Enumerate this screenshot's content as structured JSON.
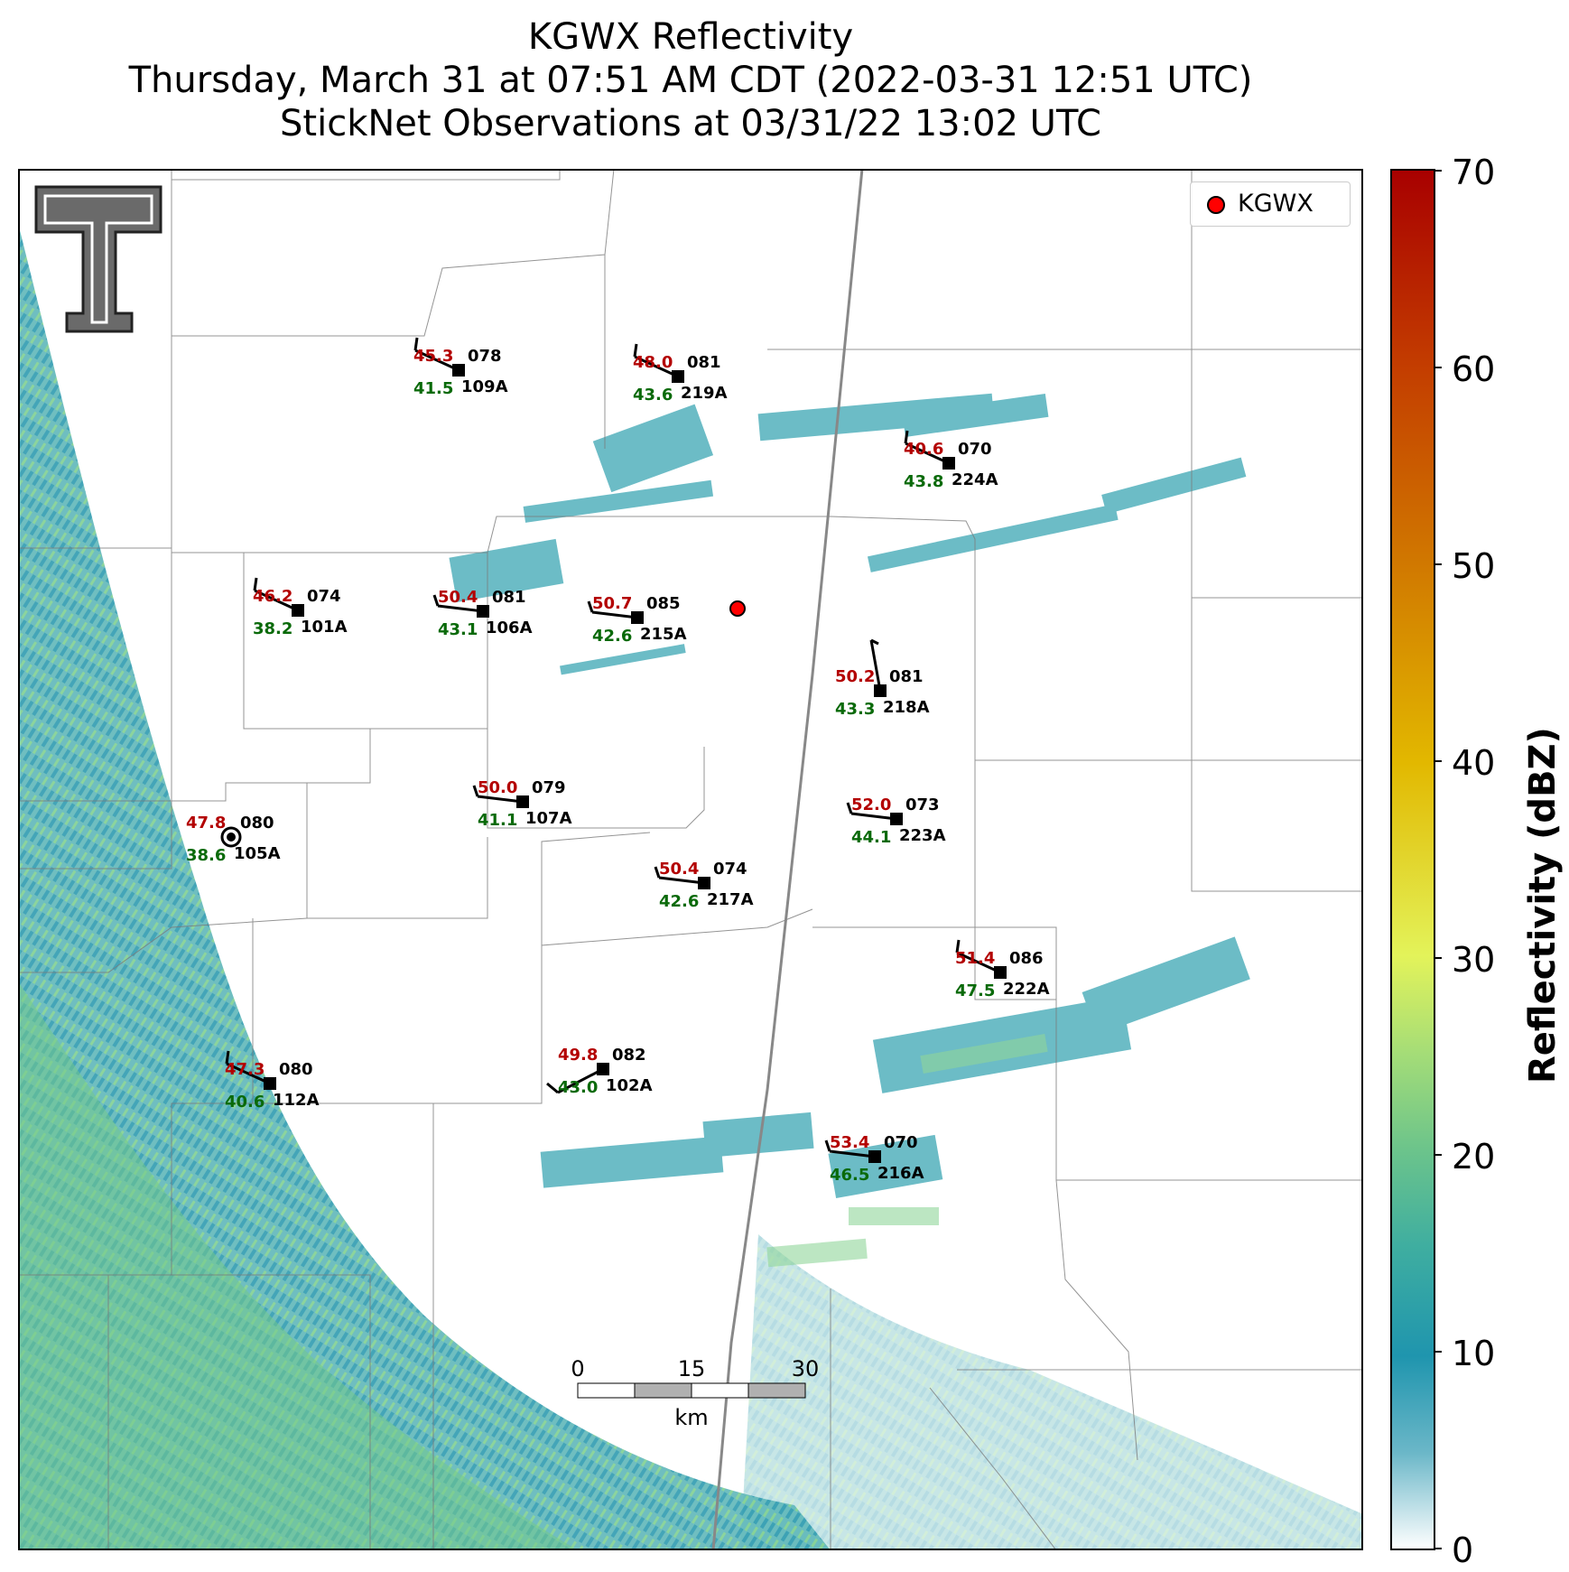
{
  "title": {
    "line1": "KGWX Reflectivity",
    "line2": "Thursday, March 31 at 07:51 AM CDT (2022-03-31 12:51 UTC)",
    "line3": "StickNet Observations at 03/31/22 13:02 UTC"
  },
  "legend": {
    "label": "KGWX"
  },
  "radar": {
    "name": "KGWX",
    "color": "#ff0000"
  },
  "colorbar": {
    "label": "Reflectivity (dBZ)",
    "min": 0,
    "max": 70,
    "ticks": [
      "0",
      "10",
      "20",
      "30",
      "40",
      "50",
      "60",
      "70"
    ]
  },
  "scalebar": {
    "ticks": [
      "0",
      "15",
      "30"
    ],
    "unit": "km"
  },
  "stations": [
    {
      "id": "109A",
      "temp": "45.3",
      "dew": "41.5",
      "dir": "078",
      "wind": "barb-nw"
    },
    {
      "id": "219A",
      "temp": "48.0",
      "dew": "43.6",
      "dir": "081",
      "wind": "barb-nw"
    },
    {
      "id": "224A",
      "temp": "40.6",
      "dew": "43.8",
      "dir": "070",
      "wind": "barb-nw"
    },
    {
      "id": "101A",
      "temp": "46.2",
      "dew": "38.2",
      "dir": "074",
      "wind": "barb-nw"
    },
    {
      "id": "106A",
      "temp": "50.4",
      "dew": "43.1",
      "dir": "081",
      "wind": "barb-w"
    },
    {
      "id": "215A",
      "temp": "50.7",
      "dew": "42.6",
      "dir": "085",
      "wind": "barb-w"
    },
    {
      "id": "218A",
      "temp": "50.2",
      "dew": "43.3",
      "dir": "081",
      "wind": "barb-n"
    },
    {
      "id": "107A",
      "temp": "50.0",
      "dew": "41.1",
      "dir": "079",
      "wind": "barb-w"
    },
    {
      "id": "105A",
      "temp": "47.8",
      "dew": "38.6",
      "dir": "080",
      "wind": "calm"
    },
    {
      "id": "223A",
      "temp": "52.0",
      "dew": "44.1",
      "dir": "073",
      "wind": "barb-w"
    },
    {
      "id": "217A",
      "temp": "50.4",
      "dew": "42.6",
      "dir": "074",
      "wind": "barb-w"
    },
    {
      "id": "222A",
      "temp": "51.4",
      "dew": "47.5",
      "dir": "086",
      "wind": "barb-nw"
    },
    {
      "id": "112A",
      "temp": "47.3",
      "dew": "40.6",
      "dir": "080",
      "wind": "barb-nw"
    },
    {
      "id": "102A",
      "temp": "49.8",
      "dew": "43.0",
      "dir": "082",
      "wind": "barb-sw"
    },
    {
      "id": "216A",
      "temp": "53.4",
      "dew": "46.5",
      "dir": "070",
      "wind": "barb-w"
    }
  ]
}
